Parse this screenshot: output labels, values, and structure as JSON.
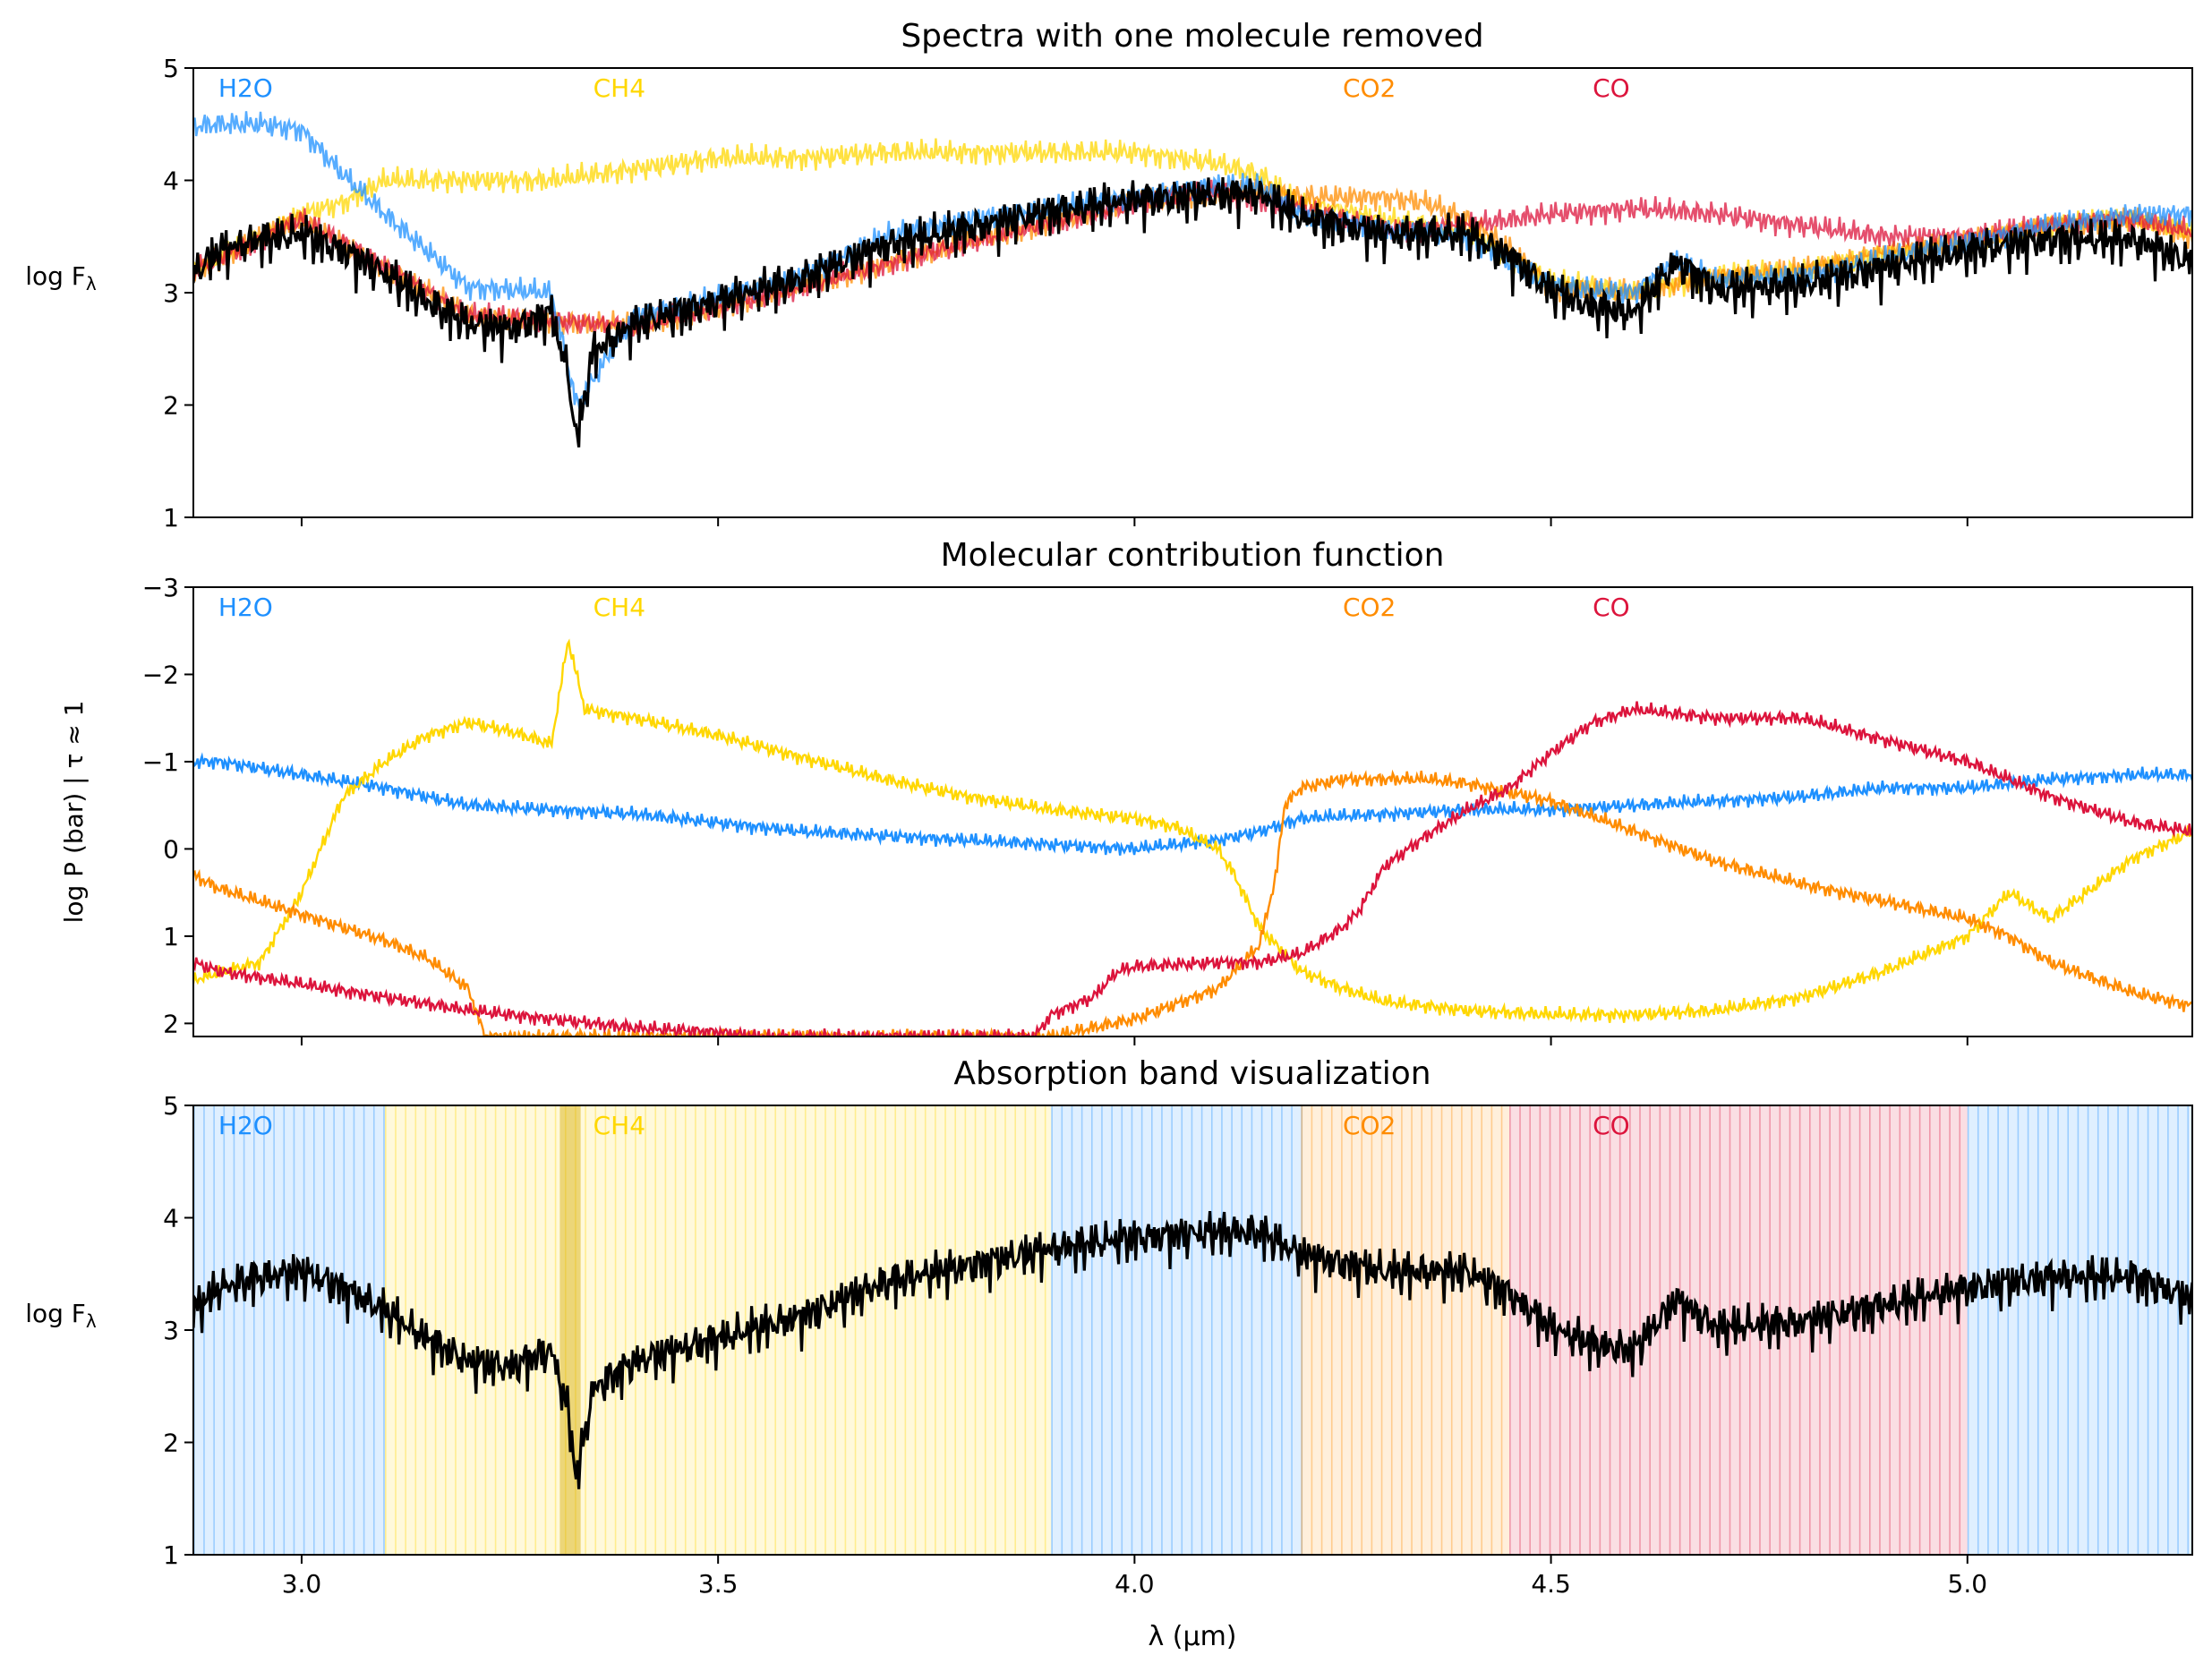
{
  "colors": {
    "H2O": "#1e90ff",
    "CH4": "#ffd700",
    "CO2": "#ff8c00",
    "CO": "#dc143c",
    "full": "#000000"
  },
  "xaxis": {
    "label": "λ (μm)",
    "xlim": [
      2.87,
      5.27
    ],
    "ticks": [
      "3.0",
      "3.5",
      "4.0",
      "4.5",
      "5.0"
    ],
    "tick_values": [
      3.0,
      3.5,
      4.0,
      4.5,
      5.0
    ]
  },
  "chart_data": [
    {
      "type": "line",
      "title": "Spectra with one molecule removed",
      "ylabel": "log F",
      "ylabel_sub": "λ",
      "ylim": [
        1,
        5
      ],
      "yticks": [
        "1",
        "2",
        "3",
        "4",
        "5"
      ],
      "molecule_labels": [
        {
          "text": "H2O",
          "x": 2.9,
          "color": "#1e90ff"
        },
        {
          "text": "CH4",
          "x": 3.35,
          "color": "#ffd700"
        },
        {
          "text": "CO2",
          "x": 4.25,
          "color": "#ff8c00"
        },
        {
          "text": "CO",
          "x": 4.55,
          "color": "#dc143c"
        }
      ],
      "series": [
        {
          "name": "CH4",
          "color": "#ffd700",
          "x": [
            2.87,
            2.95,
            3.0,
            3.05,
            3.1,
            3.2,
            3.3,
            3.4,
            3.5,
            3.6,
            3.7,
            3.8,
            3.9,
            4.0,
            4.1,
            4.15,
            4.2,
            4.3,
            4.4,
            4.5,
            4.6,
            4.7,
            4.8,
            4.9,
            5.0,
            5.1,
            5.2,
            5.27
          ],
          "y": [
            3.2,
            3.5,
            3.7,
            3.8,
            4.0,
            4.0,
            4.0,
            4.1,
            4.2,
            4.2,
            4.25,
            4.25,
            4.25,
            4.25,
            4.15,
            4.05,
            3.8,
            3.65,
            3.55,
            3.1,
            3.0,
            3.15,
            3.2,
            3.35,
            3.45,
            3.6,
            3.65,
            3.55
          ]
        },
        {
          "name": "CO2",
          "color": "#ff8c00",
          "x": [
            2.87,
            3.0,
            3.2,
            3.4,
            3.6,
            3.8,
            4.0,
            4.1,
            4.15,
            4.2,
            4.25,
            4.3,
            4.35,
            4.4,
            4.45,
            4.5,
            4.6,
            4.7,
            4.8,
            4.9,
            5.0,
            5.1,
            5.2,
            5.27
          ],
          "y": [
            3.2,
            3.65,
            2.8,
            2.7,
            3.05,
            3.45,
            3.8,
            3.9,
            3.9,
            3.85,
            3.85,
            3.85,
            3.8,
            3.65,
            3.4,
            3.05,
            3.0,
            3.15,
            3.2,
            3.35,
            3.45,
            3.6,
            3.65,
            3.5
          ]
        },
        {
          "name": "CO",
          "color": "#dc143c",
          "x": [
            2.87,
            3.0,
            3.2,
            3.4,
            3.6,
            3.8,
            4.0,
            4.1,
            4.2,
            4.3,
            4.4,
            4.45,
            4.5,
            4.6,
            4.7,
            4.8,
            4.9,
            5.0,
            5.1,
            5.2,
            5.27
          ],
          "y": [
            3.2,
            3.65,
            2.8,
            2.7,
            3.05,
            3.45,
            3.8,
            3.9,
            3.75,
            3.55,
            3.6,
            3.65,
            3.7,
            3.75,
            3.7,
            3.6,
            3.5,
            3.5,
            3.6,
            3.65,
            3.55
          ]
        },
        {
          "name": "H2O",
          "color": "#1e90ff",
          "x": [
            2.87,
            2.9,
            2.95,
            3.0,
            3.05,
            3.1,
            3.2,
            3.3,
            3.33,
            3.4,
            3.5,
            3.6,
            3.7,
            3.8,
            3.9,
            4.0,
            4.1,
            4.15,
            4.2,
            4.3,
            4.4,
            4.5,
            4.6,
            4.65,
            4.7,
            4.8,
            4.9,
            5.0,
            5.1,
            5.2,
            5.27
          ],
          "y": [
            4.48,
            4.5,
            4.5,
            4.45,
            4.05,
            3.7,
            3.05,
            3.0,
            2.0,
            2.8,
            2.95,
            3.15,
            3.5,
            3.65,
            3.75,
            3.85,
            3.95,
            3.95,
            3.7,
            3.55,
            3.5,
            3.05,
            3.0,
            3.3,
            3.1,
            3.15,
            3.3,
            3.45,
            3.6,
            3.7,
            3.7
          ]
        },
        {
          "name": "full",
          "color": "#000000",
          "x": [
            2.87,
            2.9,
            2.95,
            3.0,
            3.05,
            3.1,
            3.15,
            3.2,
            3.25,
            3.3,
            3.32,
            3.33,
            3.35,
            3.4,
            3.5,
            3.6,
            3.7,
            3.8,
            3.9,
            4.0,
            4.1,
            4.15,
            4.2,
            4.3,
            4.4,
            4.45,
            4.5,
            4.55,
            4.6,
            4.65,
            4.7,
            4.8,
            4.9,
            5.0,
            5.1,
            5.2,
            5.27
          ],
          "y": [
            3.2,
            3.4,
            3.5,
            3.55,
            3.4,
            3.2,
            2.95,
            2.75,
            2.7,
            2.85,
            2.3,
            1.7,
            2.5,
            2.75,
            2.95,
            3.15,
            3.45,
            3.6,
            3.75,
            3.85,
            3.9,
            3.9,
            3.7,
            3.55,
            3.55,
            3.35,
            3.05,
            2.9,
            2.85,
            3.3,
            3.05,
            3.1,
            3.25,
            3.4,
            3.5,
            3.5,
            3.3
          ]
        }
      ]
    },
    {
      "type": "line",
      "title": "Molecular contribution function",
      "ylabel": "log P (bar) | τ ≈ 1",
      "ylim": [
        2.15,
        -3
      ],
      "yticks": [
        "−3",
        "−2",
        "−1",
        "0",
        "1",
        "2"
      ],
      "ytick_values": [
        -3,
        -2,
        -1,
        0,
        1,
        2
      ],
      "molecule_labels": [
        {
          "text": "H2O",
          "x": 2.9,
          "color": "#1e90ff"
        },
        {
          "text": "CH4",
          "x": 3.35,
          "color": "#ffd700"
        },
        {
          "text": "CO2",
          "x": 4.25,
          "color": "#ff8c00"
        },
        {
          "text": "CO",
          "x": 4.55,
          "color": "#dc143c"
        }
      ],
      "series": [
        {
          "name": "H2O",
          "color": "#1e90ff",
          "x": [
            2.87,
            2.9,
            3.0,
            3.1,
            3.2,
            3.3,
            3.4,
            3.5,
            3.6,
            3.7,
            3.8,
            3.9,
            4.0,
            4.1,
            4.15,
            4.2,
            4.3,
            4.4,
            4.5,
            4.6,
            4.7,
            4.8,
            4.9,
            5.0,
            5.1,
            5.2,
            5.27
          ],
          "y": [
            -1.0,
            -1.0,
            -0.85,
            -0.7,
            -0.5,
            -0.45,
            -0.4,
            -0.3,
            -0.2,
            -0.15,
            -0.1,
            -0.05,
            0.0,
            -0.1,
            -0.2,
            -0.35,
            -0.4,
            -0.45,
            -0.45,
            -0.5,
            -0.55,
            -0.6,
            -0.7,
            -0.7,
            -0.8,
            -0.85,
            -0.85
          ]
        },
        {
          "name": "CH4",
          "color": "#ffd700",
          "x": [
            2.87,
            2.95,
            3.0,
            3.05,
            3.1,
            3.15,
            3.2,
            3.25,
            3.3,
            3.32,
            3.34,
            3.4,
            3.5,
            3.6,
            3.7,
            3.8,
            3.9,
            4.0,
            4.05,
            4.1,
            4.12,
            4.15,
            4.18,
            4.2,
            4.25,
            4.3,
            4.4,
            4.5,
            4.6,
            4.7,
            4.8,
            4.9,
            5.0,
            5.05,
            5.1,
            5.2,
            5.27
          ],
          "y": [
            1.5,
            1.3,
            0.5,
            -0.6,
            -1.0,
            -1.3,
            -1.45,
            -1.35,
            -1.2,
            -2.4,
            -1.6,
            -1.5,
            -1.3,
            -1.05,
            -0.8,
            -0.6,
            -0.45,
            -0.35,
            -0.25,
            0.0,
            0.3,
            0.9,
            1.2,
            1.4,
            1.6,
            1.75,
            1.85,
            1.9,
            1.9,
            1.85,
            1.7,
            1.4,
            1.0,
            0.5,
            0.8,
            0.1,
            -0.2
          ]
        },
        {
          "name": "CO2",
          "color": "#ff8c00",
          "x": [
            2.87,
            2.9,
            3.0,
            3.1,
            3.15,
            3.2,
            3.22,
            3.9,
            4.0,
            4.1,
            4.15,
            4.17,
            4.18,
            4.2,
            4.25,
            4.3,
            4.35,
            4.4,
            4.5,
            4.6,
            4.7,
            4.8,
            4.9,
            5.0,
            5.05,
            5.1,
            5.2,
            5.27
          ],
          "y": [
            0.3,
            0.45,
            0.75,
            1.05,
            1.25,
            1.6,
            2.15,
            2.15,
            1.95,
            1.6,
            1.1,
            0.3,
            -0.5,
            -0.7,
            -0.8,
            -0.8,
            -0.8,
            -0.75,
            -0.55,
            -0.2,
            0.15,
            0.4,
            0.6,
            0.8,
            1.0,
            1.3,
            1.65,
            1.8
          ]
        },
        {
          "name": "CO",
          "color": "#dc143c",
          "x": [
            2.87,
            2.9,
            3.0,
            3.1,
            3.2,
            3.3,
            3.4,
            3.5,
            3.55,
            3.88,
            3.9,
            3.95,
            3.98,
            4.0,
            4.1,
            4.15,
            4.2,
            4.25,
            4.27,
            4.3,
            4.35,
            4.4,
            4.45,
            4.5,
            4.55,
            4.6,
            4.7,
            4.8,
            4.9,
            5.0,
            5.1,
            5.2,
            5.27
          ],
          "y": [
            1.3,
            1.4,
            1.55,
            1.7,
            1.85,
            1.95,
            2.05,
            2.1,
            2.15,
            2.15,
            1.9,
            1.7,
            1.4,
            1.35,
            1.3,
            1.3,
            1.2,
            0.9,
            0.7,
            0.2,
            -0.15,
            -0.45,
            -0.7,
            -1.1,
            -1.45,
            -1.6,
            -1.5,
            -1.5,
            -1.25,
            -1.0,
            -0.6,
            -0.3,
            -0.2
          ]
        }
      ]
    },
    {
      "type": "line",
      "title": "Absorption band visualization",
      "ylabel": "log F",
      "ylabel_sub": "λ",
      "ylim": [
        1,
        5
      ],
      "yticks": [
        "1",
        "2",
        "3",
        "4",
        "5"
      ],
      "molecule_labels": [
        {
          "text": "H2O",
          "x": 2.9,
          "color": "#1e90ff"
        },
        {
          "text": "CH4",
          "x": 3.35,
          "color": "#ffd700"
        },
        {
          "text": "CO2",
          "x": 4.25,
          "color": "#ff8c00"
        },
        {
          "text": "CO",
          "x": 4.55,
          "color": "#dc143c"
        }
      ],
      "bands": [
        {
          "x0": 2.87,
          "x1": 3.1,
          "color": "#1e90ff"
        },
        {
          "x0": 3.1,
          "x1": 3.9,
          "color": "#ffd700"
        },
        {
          "x0": 3.9,
          "x1": 4.2,
          "color": "#1e90ff"
        },
        {
          "x0": 4.2,
          "x1": 4.45,
          "color": "#ff8c00"
        },
        {
          "x0": 4.45,
          "x1": 5.0,
          "color": "#dc143c"
        },
        {
          "x0": 5.0,
          "x1": 5.27,
          "color": "#1e90ff"
        }
      ],
      "series": [
        {
          "name": "full",
          "color": "#000000",
          "x": [
            2.87,
            2.9,
            2.95,
            3.0,
            3.05,
            3.1,
            3.15,
            3.2,
            3.25,
            3.3,
            3.32,
            3.33,
            3.35,
            3.4,
            3.5,
            3.6,
            3.7,
            3.8,
            3.9,
            4.0,
            4.1,
            4.15,
            4.2,
            4.3,
            4.4,
            4.45,
            4.5,
            4.55,
            4.6,
            4.65,
            4.7,
            4.8,
            4.9,
            5.0,
            5.1,
            5.2,
            5.27
          ],
          "y": [
            3.2,
            3.4,
            3.5,
            3.55,
            3.4,
            3.2,
            2.95,
            2.75,
            2.7,
            2.85,
            2.3,
            1.7,
            2.5,
            2.75,
            2.95,
            3.15,
            3.45,
            3.6,
            3.75,
            3.85,
            3.9,
            3.9,
            3.7,
            3.55,
            3.55,
            3.35,
            3.05,
            2.9,
            2.85,
            3.3,
            3.05,
            3.1,
            3.25,
            3.4,
            3.5,
            3.5,
            3.3
          ]
        }
      ]
    }
  ]
}
